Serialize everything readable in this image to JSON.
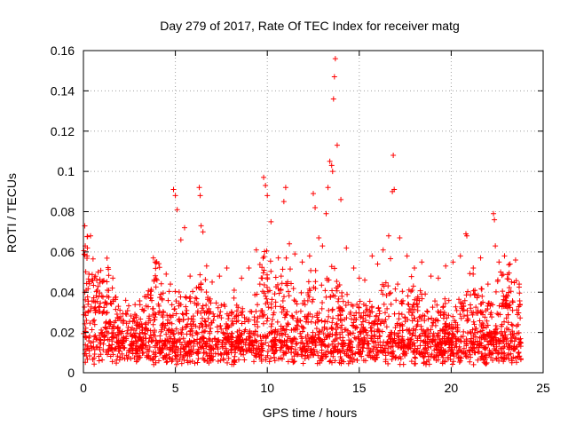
{
  "chart_data": {
    "type": "scatter",
    "title": "Day 279 of 2017, Rate Of TEC Index for receiver matg",
    "xlabel": "GPS time / hours",
    "ylabel": "ROTI / TECUs",
    "xlim": [
      0,
      25
    ],
    "ylim": [
      0,
      0.16
    ],
    "xticks": [
      0,
      5,
      10,
      15,
      20,
      25
    ],
    "xtick_labels": [
      "0",
      "5",
      "10",
      "15",
      "20",
      "25"
    ],
    "yticks": [
      0,
      0.02,
      0.04,
      0.06,
      0.08,
      0.1,
      0.12,
      0.14,
      0.16
    ],
    "ytick_labels": [
      "0",
      "0.02",
      "0.04",
      "0.06",
      "0.08",
      "0.1",
      "0.12",
      "0.14",
      "0.16"
    ],
    "grid": true,
    "marker": "+",
    "color": "#ff0000",
    "series": [
      {
        "name": "ROTI",
        "x": [
          0.1,
          0.2,
          0.3,
          0.15,
          0.25,
          0.5,
          0.8,
          1.0,
          1.3,
          1.6,
          1.9,
          2.3,
          2.8,
          3.3,
          3.8,
          3.9,
          4.0,
          4.5,
          4.9,
          5.0,
          5.1,
          5.3,
          5.5,
          5.8,
          6.3,
          6.35,
          6.4,
          6.5,
          6.7,
          7.0,
          7.4,
          7.8,
          8.2,
          8.6,
          9.0,
          9.4,
          9.8,
          9.9,
          10.0,
          10.2,
          10.6,
          10.9,
          11.0,
          11.2,
          11.5,
          11.9,
          12.3,
          12.5,
          12.6,
          12.8,
          13.0,
          13.2,
          13.3,
          13.4,
          13.5,
          13.55,
          13.6,
          13.65,
          13.7,
          13.8,
          14.0,
          14.3,
          14.7,
          15.0,
          15.3,
          15.7,
          16.0,
          16.3,
          16.6,
          16.8,
          16.85,
          16.9,
          17.2,
          17.6,
          18.0,
          18.4,
          18.9,
          19.3,
          19.7,
          20.1,
          20.5,
          20.8,
          20.85,
          21.2,
          21.6,
          22.0,
          22.3,
          22.35,
          22.4,
          22.6,
          22.9,
          23.2,
          23.5,
          23.7
        ],
        "y": [
          0.063,
          0.058,
          0.049,
          0.041,
          0.034,
          0.046,
          0.05,
          0.038,
          0.041,
          0.047,
          0.033,
          0.036,
          0.029,
          0.031,
          0.057,
          0.055,
          0.046,
          0.049,
          0.091,
          0.088,
          0.081,
          0.066,
          0.072,
          0.048,
          0.092,
          0.088,
          0.073,
          0.07,
          0.053,
          0.045,
          0.048,
          0.052,
          0.041,
          0.047,
          0.052,
          0.061,
          0.097,
          0.093,
          0.088,
          0.075,
          0.057,
          0.085,
          0.092,
          0.064,
          0.059,
          0.055,
          0.058,
          0.089,
          0.082,
          0.067,
          0.063,
          0.079,
          0.092,
          0.105,
          0.103,
          0.1,
          0.136,
          0.147,
          0.156,
          0.113,
          0.086,
          0.062,
          0.052,
          0.047,
          0.046,
          0.058,
          0.054,
          0.061,
          0.068,
          0.09,
          0.108,
          0.091,
          0.067,
          0.058,
          0.052,
          0.055,
          0.048,
          0.047,
          0.053,
          0.055,
          0.058,
          0.069,
          0.068,
          0.052,
          0.057,
          0.044,
          0.079,
          0.076,
          0.063,
          0.055,
          0.058,
          0.054,
          0.056,
          0.044
        ]
      }
    ]
  }
}
